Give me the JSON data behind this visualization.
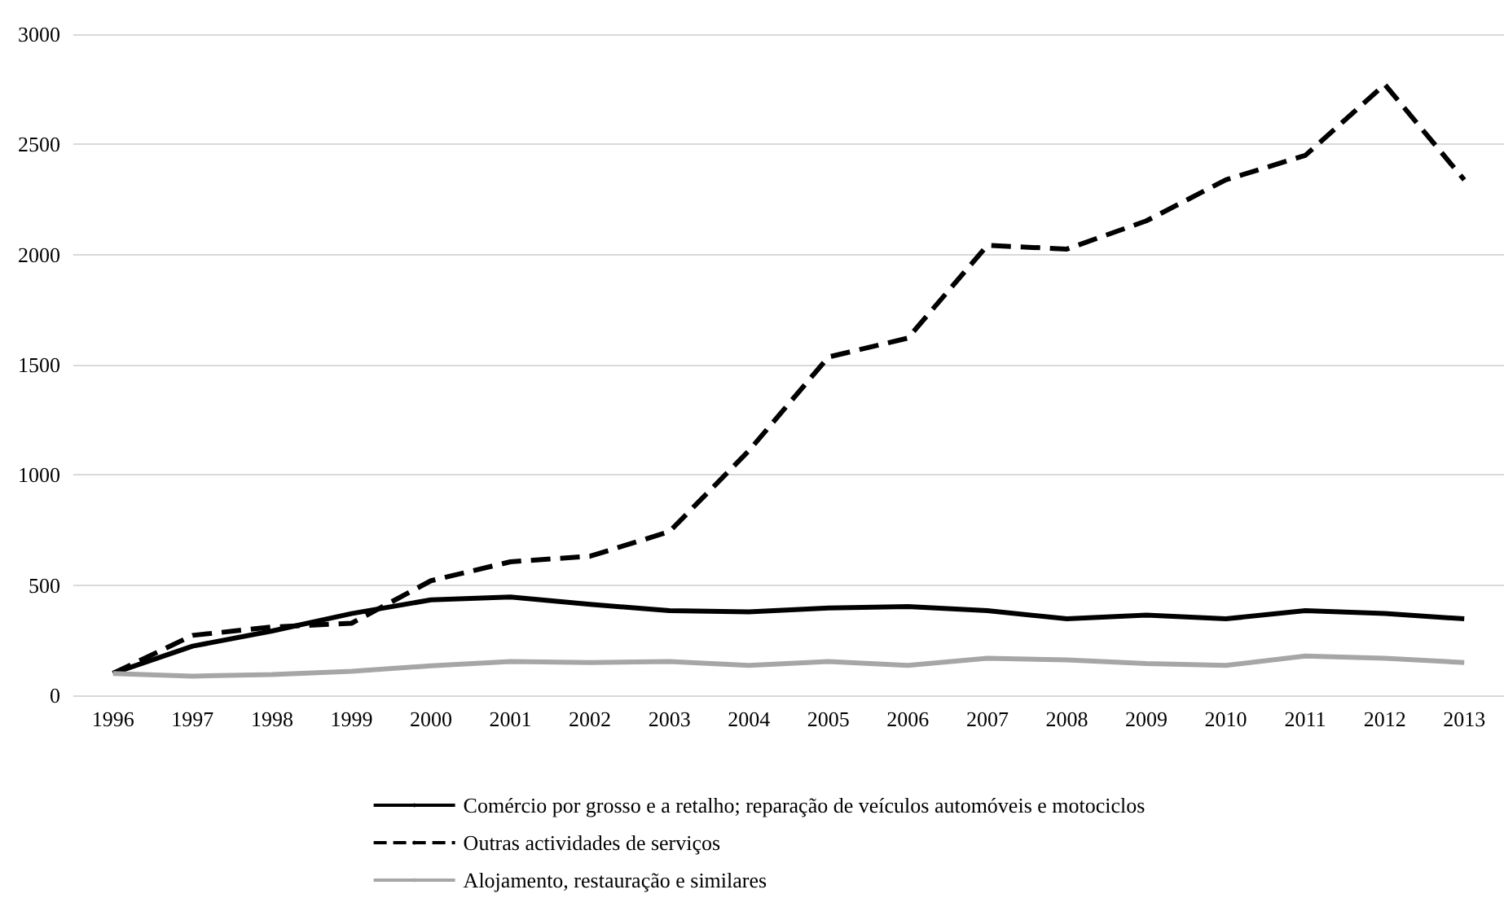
{
  "chart_data": {
    "type": "line",
    "categories": [
      "1996",
      "1997",
      "1998",
      "1999",
      "2000",
      "2001",
      "2002",
      "2003",
      "2004",
      "2005",
      "2006",
      "2007",
      "2008",
      "2009",
      "2010",
      "2011",
      "2012",
      "2013"
    ],
    "series": [
      {
        "name": "Comércio por grosso e a retalho; reparação de veículos automóveis e motociclos",
        "color": "#000000",
        "line_style": "solid",
        "values": [
          100,
          223,
          292,
          371,
          433,
          446,
          413,
          384,
          379,
          396,
          403,
          384,
          347,
          364,
          347,
          384,
          371,
          347
        ]
      },
      {
        "name": "Outras actividades de serviços",
        "color": "#000000",
        "line_style": "dashed",
        "values": [
          100,
          272,
          310,
          327,
          520,
          606,
          631,
          743,
          1110,
          1535,
          1621,
          2042,
          2025,
          2153,
          2339,
          2450,
          2772,
          2339
        ]
      },
      {
        "name": "Alojamento, restauração e similares",
        "color": "#a6a6a6",
        "line_style": "solid",
        "values": [
          99,
          87,
          94,
          109,
          134,
          153,
          149,
          153,
          136,
          153,
          136,
          168,
          161,
          144,
          136,
          178,
          168,
          149
        ]
      }
    ],
    "ylim": [
      0,
      3000
    ],
    "yticks": [
      0,
      500,
      1000,
      1500,
      2000,
      2500,
      3000
    ],
    "grid": "y",
    "legend": "bottom",
    "marker": "none"
  }
}
